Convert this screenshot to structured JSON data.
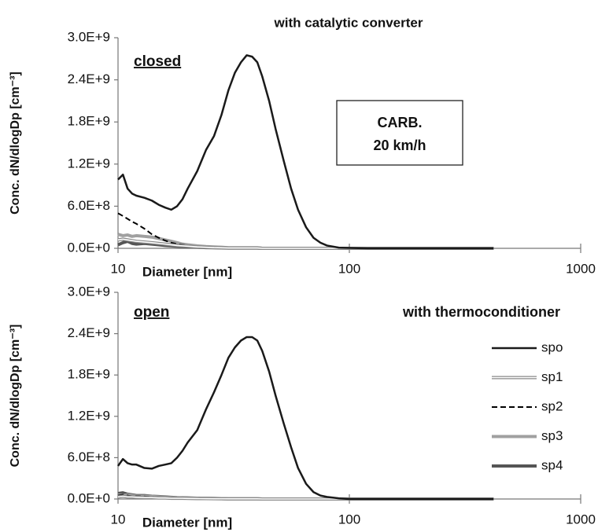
{
  "chart_data": [
    {
      "type": "line",
      "title": "with catalytic converter",
      "annotations": [
        "closed",
        "CARB.",
        "20 km/h"
      ],
      "x_label": "Diameter [nm]",
      "y_label": "Conc. dN/dlogDp [cm⁻³]",
      "xlog": true,
      "xlim": [
        10,
        1000
      ],
      "xticks": [
        10,
        100,
        1000
      ],
      "ylim": [
        0,
        3000000000.0
      ],
      "yticks": [
        {
          "value": 0,
          "label": "0.0E+0"
        },
        {
          "value": 600000000.0,
          "label": "6.0E+8"
        },
        {
          "value": 1200000000.0,
          "label": "1.2E+9"
        },
        {
          "value": 1800000000.0,
          "label": "1.8E+9"
        },
        {
          "value": 2400000000.0,
          "label": "2.4E+9"
        },
        {
          "value": 3000000000.0,
          "label": "3.0E+9"
        }
      ],
      "x": [
        10,
        10.5,
        11,
        11.5,
        12,
        13,
        14,
        15,
        16,
        17,
        18,
        19,
        20,
        22,
        24,
        26,
        28,
        30,
        32,
        34,
        36,
        38,
        40,
        42,
        45,
        48,
        52,
        56,
        60,
        65,
        70,
        75,
        80,
        90,
        100,
        120,
        150,
        200,
        300,
        420
      ],
      "series": [
        {
          "color": "#1a1a1a",
          "style": "solid",
          "values": [
            980000000.0,
            1050000000.0,
            850000000.0,
            780000000.0,
            750000000.0,
            720000000.0,
            680000000.0,
            620000000.0,
            580000000.0,
            550000000.0,
            600000000.0,
            700000000.0,
            850000000.0,
            1100000000.0,
            1400000000.0,
            1600000000.0,
            1900000000.0,
            2250000000.0,
            2500000000.0,
            2650000000.0,
            2750000000.0,
            2730000000.0,
            2650000000.0,
            2450000000.0,
            2100000000.0,
            1700000000.0,
            1250000000.0,
            850000000.0,
            550000000.0,
            300000000.0,
            150000000.0,
            80000000.0,
            40000000.0,
            10000000.0,
            5000000.0,
            0,
            0,
            0,
            0,
            0
          ]
        },
        {
          "color": "#888888",
          "style": "double",
          "values": [
            120000000.0,
            130000000.0,
            120000000.0,
            110000000.0,
            100000000.0,
            90000000.0,
            80000000.0,
            70000000.0,
            60000000.0,
            50000000.0,
            40000000.0,
            35000000.0,
            30000000.0,
            20000000.0,
            15000000.0,
            10000000.0,
            8000000.0,
            5000000.0,
            5000000.0,
            5000000.0,
            5000000.0,
            5000000.0,
            5000000.0,
            0,
            0,
            0,
            0,
            0,
            0,
            0,
            0,
            0,
            0,
            0,
            0,
            0,
            0,
            0,
            0,
            0
          ]
        },
        {
          "color": "#000000",
          "style": "dashed",
          "values": [
            500000000.0,
            460000000.0,
            420000000.0,
            380000000.0,
            350000000.0,
            280000000.0,
            200000000.0,
            150000000.0,
            110000000.0,
            80000000.0,
            60000000.0,
            50000000.0,
            40000000.0,
            25000000.0,
            20000000.0,
            15000000.0,
            10000000.0,
            5000000.0,
            5000000.0,
            5000000.0,
            5000000.0,
            5000000.0,
            5000000.0,
            0,
            0,
            0,
            0,
            0,
            0,
            0,
            0,
            0,
            0,
            0,
            0,
            0,
            0,
            0,
            0,
            0
          ]
        },
        {
          "color": "#a0a0a0",
          "style": "thick",
          "values": [
            200000000.0,
            180000000.0,
            190000000.0,
            170000000.0,
            180000000.0,
            170000000.0,
            160000000.0,
            140000000.0,
            120000000.0,
            100000000.0,
            80000000.0,
            60000000.0,
            50000000.0,
            35000000.0,
            25000000.0,
            20000000.0,
            15000000.0,
            8000000.0,
            8000000.0,
            8000000.0,
            8000000.0,
            8000000.0,
            8000000.0,
            0,
            0,
            0,
            0,
            0,
            0,
            0,
            0,
            0,
            0,
            0,
            0,
            0,
            0,
            0,
            0,
            0
          ]
        },
        {
          "color": "#555555",
          "style": "thick",
          "values": [
            50000000.0,
            80000000.0,
            100000000.0,
            70000000.0,
            60000000.0,
            70000000.0,
            60000000.0,
            50000000.0,
            40000000.0,
            35000000.0,
            30000000.0,
            25000000.0,
            20000000.0,
            15000000.0,
            10000000.0,
            8000000.0,
            6000000.0,
            3000000.0,
            3000000.0,
            3000000.0,
            3000000.0,
            3000000.0,
            3000000.0,
            0,
            0,
            0,
            0,
            0,
            0,
            0,
            0,
            0,
            0,
            0,
            0,
            0,
            0,
            0,
            0,
            0
          ]
        }
      ]
    },
    {
      "type": "line",
      "annotations": [
        "open",
        "with thermoconditioner"
      ],
      "x_label": "Diameter [nm]",
      "y_label": "Conc. dN/dlogDp [cm⁻³]",
      "xlog": true,
      "xlim": [
        10,
        1000
      ],
      "xticks": [
        10,
        100,
        1000
      ],
      "ylim": [
        0,
        3000000000.0
      ],
      "yticks": [
        {
          "value": 0,
          "label": "0.0E+0"
        },
        {
          "value": 600000000.0,
          "label": "6.0E+8"
        },
        {
          "value": 1200000000.0,
          "label": "1.2E+9"
        },
        {
          "value": 1800000000.0,
          "label": "1.8E+9"
        },
        {
          "value": 2400000000.0,
          "label": "2.4E+9"
        },
        {
          "value": 3000000000.0,
          "label": "3.0E+9"
        }
      ],
      "legend": "right",
      "x": [
        10,
        10.5,
        11,
        11.5,
        12,
        13,
        14,
        15,
        16,
        17,
        18,
        19,
        20,
        22,
        24,
        26,
        28,
        30,
        32,
        34,
        36,
        38,
        40,
        42,
        45,
        48,
        52,
        56,
        60,
        65,
        70,
        75,
        80,
        90,
        100,
        120,
        150,
        200,
        300,
        420
      ],
      "series": [
        {
          "name": "spo",
          "color": "#1a1a1a",
          "style": "solid",
          "values": [
            480000000.0,
            580000000.0,
            520000000.0,
            500000000.0,
            500000000.0,
            450000000.0,
            440000000.0,
            480000000.0,
            500000000.0,
            520000000.0,
            600000000.0,
            700000000.0,
            820000000.0,
            1000000000.0,
            1300000000.0,
            1550000000.0,
            1800000000.0,
            2050000000.0,
            2200000000.0,
            2300000000.0,
            2350000000.0,
            2350000000.0,
            2300000000.0,
            2150000000.0,
            1850000000.0,
            1500000000.0,
            1100000000.0,
            750000000.0,
            450000000.0,
            220000000.0,
            100000000.0,
            50000000.0,
            30000000.0,
            10000000.0,
            0,
            0,
            0,
            0,
            0,
            0
          ]
        },
        {
          "name": "sp1",
          "color": "#888888",
          "style": "double",
          "values": [
            30000000.0,
            40000000.0,
            30000000.0,
            30000000.0,
            25000000.0,
            20000000.0,
            20000000.0,
            15000000.0,
            15000000.0,
            10000000.0,
            10000000.0,
            10000000.0,
            8000000.0,
            6000000.0,
            5000000.0,
            4000000.0,
            3000000.0,
            2000000.0,
            2000000.0,
            2000000.0,
            2000000.0,
            2000000.0,
            2000000.0,
            0,
            0,
            0,
            0,
            0,
            0,
            0,
            0,
            0,
            0,
            0,
            0,
            0,
            0,
            0,
            0,
            0
          ]
        },
        {
          "name": "sp2",
          "color": "#000000",
          "style": "dashed",
          "values": [
            50000000.0,
            60000000.0,
            50000000.0,
            40000000.0,
            40000000.0,
            35000000.0,
            30000000.0,
            25000000.0,
            20000000.0,
            15000000.0,
            12000000.0,
            10000000.0,
            8000000.0,
            6000000.0,
            5000000.0,
            4000000.0,
            3000000.0,
            2000000.0,
            2000000.0,
            2000000.0,
            2000000.0,
            2000000.0,
            2000000.0,
            0,
            0,
            0,
            0,
            0,
            0,
            0,
            0,
            0,
            0,
            0,
            0,
            0,
            0,
            0,
            0,
            0
          ]
        },
        {
          "name": "sp3",
          "color": "#a0a0a0",
          "style": "thick",
          "values": [
            60000000.0,
            50000000.0,
            60000000.0,
            50000000.0,
            40000000.0,
            40000000.0,
            35000000.0,
            30000000.0,
            25000000.0,
            20000000.0,
            18000000.0,
            15000000.0,
            12000000.0,
            10000000.0,
            8000000.0,
            6000000.0,
            5000000.0,
            3000000.0,
            3000000.0,
            3000000.0,
            3000000.0,
            3000000.0,
            3000000.0,
            0,
            0,
            0,
            0,
            0,
            0,
            0,
            0,
            0,
            0,
            0,
            0,
            0,
            0,
            0,
            0,
            0
          ]
        },
        {
          "name": "sp4",
          "color": "#555555",
          "style": "thick",
          "values": [
            80000000.0,
            90000000.0,
            70000000.0,
            60000000.0,
            50000000.0,
            50000000.0,
            40000000.0,
            35000000.0,
            30000000.0,
            25000000.0,
            20000000.0,
            18000000.0,
            15000000.0,
            12000000.0,
            10000000.0,
            8000000.0,
            6000000.0,
            3000000.0,
            3000000.0,
            3000000.0,
            3000000.0,
            3000000.0,
            3000000.0,
            0,
            0,
            0,
            0,
            0,
            0,
            0,
            0,
            0,
            0,
            0,
            0,
            0,
            0,
            0,
            0,
            0
          ]
        }
      ]
    }
  ]
}
